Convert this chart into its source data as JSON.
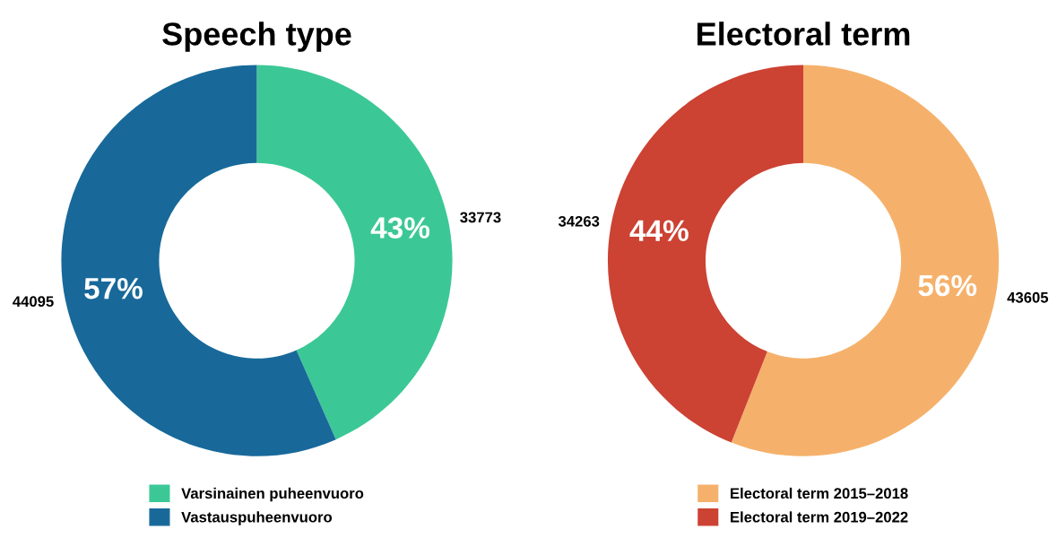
{
  "chart_data": [
    {
      "type": "donut",
      "title": "Speech type",
      "categories": [
        "Varsinainen puheenvuoro",
        "Vastauspuheenvuoro"
      ],
      "values": [
        33773,
        44095
      ],
      "colors": [
        "#3cc896",
        "#18699a"
      ],
      "data_labels": true,
      "annotations": [
        "43%",
        "57%"
      ],
      "legend": "bottom"
    },
    {
      "type": "donut",
      "title": "Electoral term",
      "categories": [
        "Electoral term 2015–2018",
        "Electoral term 2019–2022"
      ],
      "values": [
        43605,
        34263
      ],
      "colors": [
        "#f5b16b",
        "#cc4233"
      ],
      "data_labels": true,
      "annotations": [
        "56%",
        "44%"
      ],
      "legend": "bottom"
    }
  ]
}
